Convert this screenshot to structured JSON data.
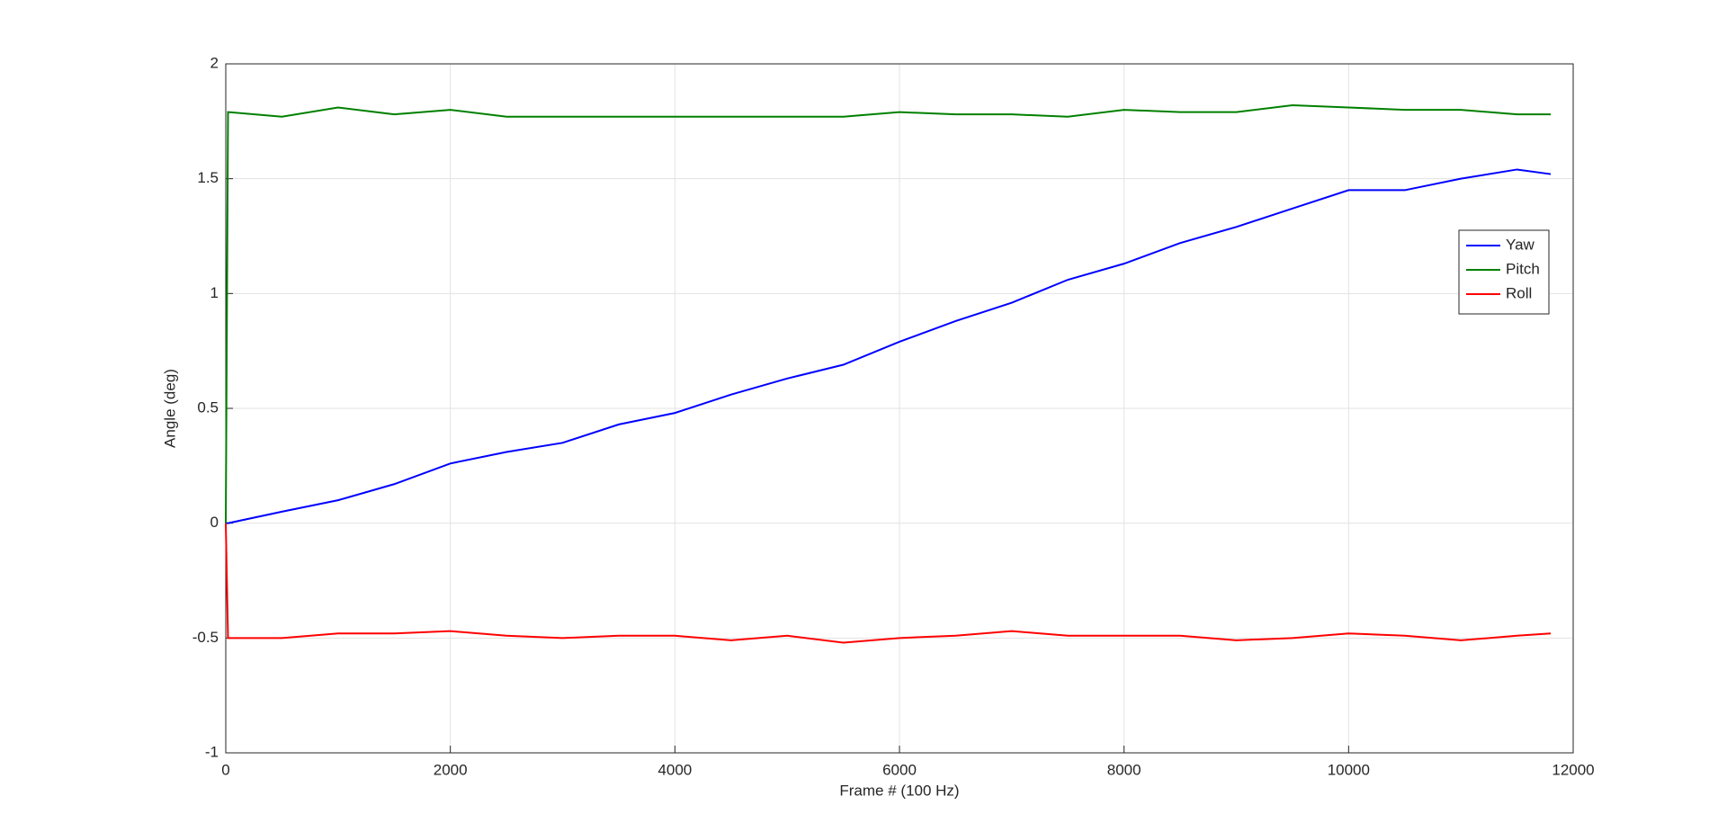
{
  "chart_data": {
    "type": "line",
    "x_label": "Frame # (100 Hz)",
    "y_label": "Angle (deg)",
    "x": [
      0,
      20,
      500,
      1000,
      1500,
      2000,
      2500,
      3000,
      3500,
      4000,
      4500,
      5000,
      5500,
      6000,
      6500,
      7000,
      7500,
      8000,
      8500,
      9000,
      9500,
      10000,
      10500,
      11000,
      11500,
      11800
    ],
    "series": [
      {
        "name": "Yaw",
        "color": "#0000ff",
        "values": [
          0,
          0.0,
          0.05,
          0.1,
          0.17,
          0.26,
          0.31,
          0.35,
          0.43,
          0.48,
          0.56,
          0.63,
          0.69,
          0.79,
          0.88,
          0.96,
          1.06,
          1.13,
          1.22,
          1.29,
          1.37,
          1.45,
          1.45,
          1.5,
          1.54,
          1.52
        ]
      },
      {
        "name": "Pitch",
        "color": "#008000",
        "values": [
          0,
          1.79,
          1.77,
          1.81,
          1.78,
          1.8,
          1.77,
          1.77,
          1.77,
          1.77,
          1.77,
          1.77,
          1.77,
          1.79,
          1.78,
          1.78,
          1.77,
          1.8,
          1.79,
          1.79,
          1.82,
          1.81,
          1.8,
          1.8,
          1.78,
          1.78
        ]
      },
      {
        "name": "Roll",
        "color": "#ff0000",
        "values": [
          0,
          -0.5,
          -0.5,
          -0.48,
          -0.48,
          -0.47,
          -0.49,
          -0.5,
          -0.49,
          -0.49,
          -0.51,
          -0.49,
          -0.52,
          -0.5,
          -0.49,
          -0.47,
          -0.49,
          -0.49,
          -0.49,
          -0.51,
          -0.5,
          -0.48,
          -0.49,
          -0.51,
          -0.49,
          -0.48
        ]
      }
    ],
    "xlim": [
      0,
      12000
    ],
    "xticks": [
      0,
      2000,
      4000,
      6000,
      8000,
      10000,
      12000
    ],
    "ylim": [
      -1,
      2
    ],
    "yticks": [
      -1,
      -0.5,
      0,
      0.5,
      1,
      1.5,
      2
    ],
    "grid": true
  }
}
